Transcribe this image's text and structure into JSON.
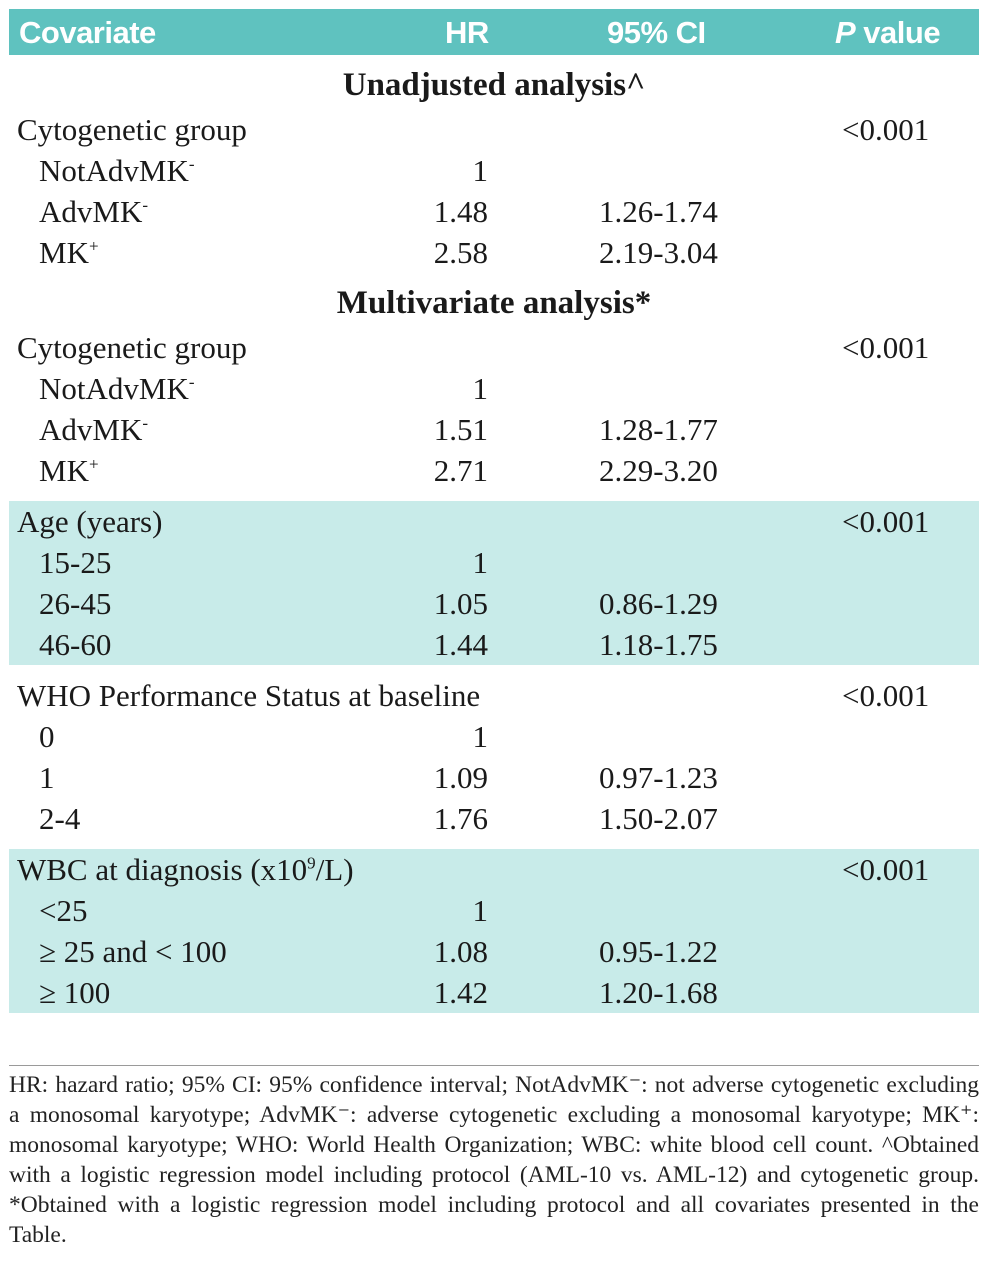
{
  "header": {
    "covariate": "Covariate",
    "hr": "HR",
    "ci": "95% CI",
    "p_italic": "P",
    "p_rest": " value"
  },
  "sections": {
    "unadjusted_title": "Unadjusted analysis^",
    "multivariate_title": "Multivariate analysis*"
  },
  "unadjusted": {
    "group_label": "Cytogenetic group",
    "group_p": "<0.001",
    "rows": [
      {
        "label": "NotAdvMK",
        "sup": "-",
        "hr": "1",
        "ci": ""
      },
      {
        "label": "AdvMK",
        "sup": "-",
        "hr": "1.48",
        "ci": "1.26-1.74"
      },
      {
        "label": "MK",
        "sup": "+",
        "hr": "2.58",
        "ci": "2.19-3.04"
      }
    ]
  },
  "multivariate": {
    "cyto": {
      "group_label": "Cytogenetic group",
      "group_p": "<0.001",
      "rows": [
        {
          "label": "NotAdvMK",
          "sup": "-",
          "hr": "1",
          "ci": ""
        },
        {
          "label": "AdvMK",
          "sup": "-",
          "hr": "1.51",
          "ci": "1.28-1.77"
        },
        {
          "label": "MK",
          "sup": "+",
          "hr": "2.71",
          "ci": "2.29-3.20"
        }
      ]
    },
    "age": {
      "group_label": "Age (years)",
      "group_p": "<0.001",
      "rows": [
        {
          "label": "15-25",
          "hr": "1",
          "ci": ""
        },
        {
          "label": "26-45",
          "hr": "1.05",
          "ci": "0.86-1.29"
        },
        {
          "label": "46-60",
          "hr": "1.44",
          "ci": "1.18-1.75"
        }
      ]
    },
    "who": {
      "group_label": "WHO Performance Status at baseline",
      "group_p": "<0.001",
      "rows": [
        {
          "label": "0",
          "hr": "1",
          "ci": ""
        },
        {
          "label": "1",
          "hr": "1.09",
          "ci": "0.97-1.23"
        },
        {
          "label": "2-4",
          "hr": "1.76",
          "ci": "1.50-2.07"
        }
      ]
    },
    "wbc": {
      "group_label_pre": "WBC at diagnosis (x10",
      "group_label_sup": "9",
      "group_label_post": "/L)",
      "group_p": "<0.001",
      "rows": [
        {
          "label": "<25",
          "hr": "1",
          "ci": ""
        },
        {
          "label": "≥ 25 and < 100",
          "hr": "1.08",
          "ci": "0.95-1.22"
        },
        {
          "label": "≥ 100",
          "hr": "1.42",
          "ci": "1.20-1.68"
        }
      ]
    }
  },
  "footnote": "HR: hazard ratio; 95% CI: 95% confidence interval; NotAdvMK⁻: not adverse cytogenetic excluding a monosomal karyotype; AdvMK⁻: adverse cytogenetic excluding a monosomal karyotype; MK⁺: monosomal karyotype; WHO: World Health Organization; WBC: white blood cell count. ^Obtained with a logistic regression model including protocol (AML-10 vs. AML-12) and cytogenetic group. *Obtained with a logistic regression model including protocol and all covariates presented in the Table.",
  "colors": {
    "header_bg": "#5fc2bf",
    "shaded_bg": "#c8ebe9"
  }
}
